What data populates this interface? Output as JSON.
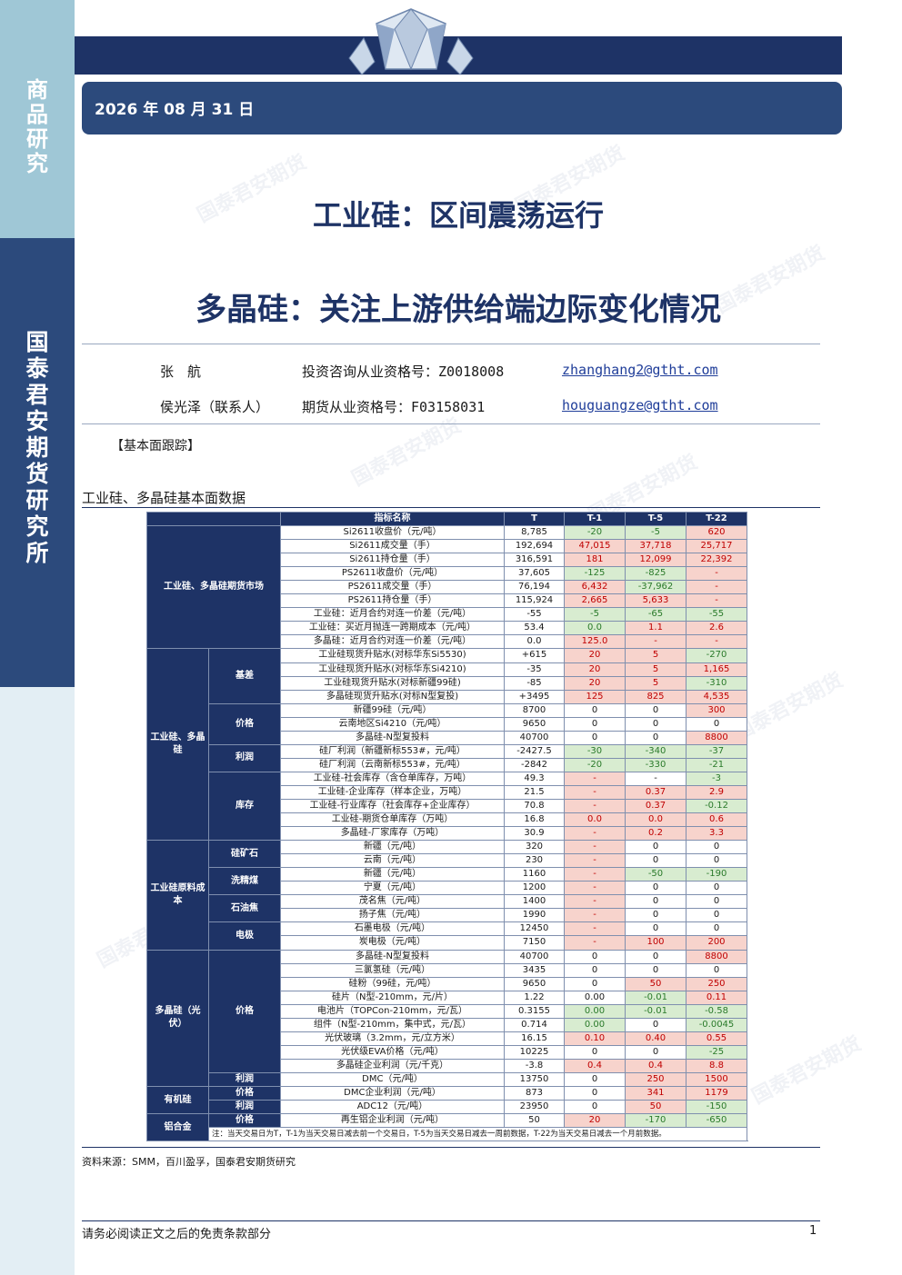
{
  "sidebar": {
    "top_label": [
      "商",
      "品",
      "研",
      "究"
    ],
    "mid_label": [
      "国",
      "泰",
      "君",
      "安",
      "期",
      "货",
      "研",
      "究",
      "所"
    ]
  },
  "header": {
    "date": "2026 年 08 月 31 日"
  },
  "titles": {
    "main": "工业硅：区间震荡运行",
    "sub": "多晶硅：关注上游供给端边际变化情况"
  },
  "authors": [
    {
      "name": "张　航",
      "cert": "投资咨询从业资格号：Z0018008",
      "email": "zhanghang2@gtht.com"
    },
    {
      "name": "侯光泽（联系人）",
      "cert": "期货从业资格号：F03158031",
      "email": "houguangze@gtht.com"
    }
  ],
  "section_tag": "【基本面跟踪】",
  "table_caption": "工业硅、多晶硅基本面数据",
  "watermark_text": "国泰君安期货",
  "table": {
    "headers": [
      "指标名称",
      "T",
      "T-1",
      "T-5",
      "T-22"
    ],
    "groups": {
      "futures": "工业硅、多晶硅期货市场",
      "silicon_poly": "工业硅、多晶硅",
      "basis": "基差",
      "price": "价格",
      "profit": "利润",
      "inventory": "库存",
      "cost": "工业硅原料成本",
      "ore": "硅矿石",
      "coal": "洗精煤",
      "coke": "石油焦",
      "electrode": "电极",
      "pv": "多晶硅（光伏）",
      "pv_price": "价格",
      "pv_profit": "利润",
      "organic": "有机硅",
      "org_price": "价格",
      "org_profit": "利润",
      "alloy": "铝合金",
      "al_price": "价格",
      "al_profit": "利润"
    },
    "rows": [
      {
        "name": "Si2611收盘价（元/吨）",
        "t": "8,785",
        "t1": "-20",
        "t5": "-5",
        "t22": "620"
      },
      {
        "name": "Si2611成交量（手）",
        "t": "192,694",
        "t1": "47,015",
        "t5": "37,718",
        "t22": "25,717"
      },
      {
        "name": "Si2611持仓量（手）",
        "t": "316,591",
        "t1": "181",
        "t5": "12,099",
        "t22": "22,392"
      },
      {
        "name": "PS2611收盘价（元/吨）",
        "t": "37,605",
        "t1": "-125",
        "t5": "-825",
        "t22": "-"
      },
      {
        "name": "PS2611成交量（手）",
        "t": "76,194",
        "t1": "6,432",
        "t5": "-37,962",
        "t22": "-"
      },
      {
        "name": "PS2611持仓量（手）",
        "t": "115,924",
        "t1": "2,665",
        "t5": "5,633",
        "t22": "-"
      },
      {
        "name": "工业硅：近月合约对连一价差（元/吨）",
        "t": "-55",
        "t1": "-5",
        "t5": "-65",
        "t22": "-55"
      },
      {
        "name": "工业硅：买近月抛连一跨期成本（元/吨）",
        "t": "53.4",
        "t1": "0.0",
        "t5": "1.1",
        "t22": "2.6"
      },
      {
        "name": "多晶硅：近月合约对连一价差（元/吨）",
        "t": "0.0",
        "t1": "125.0",
        "t5": "-",
        "t22": "-"
      },
      {
        "name": "工业硅现货升贴水(对标华东Si5530)",
        "t": "+615",
        "t1": "20",
        "t5": "5",
        "t22": "-270"
      },
      {
        "name": "工业硅现货升贴水(对标华东Si4210)",
        "t": "-35",
        "t1": "20",
        "t5": "5",
        "t22": "1,165"
      },
      {
        "name": "工业硅现货升贴水(对标新疆99硅)",
        "t": "-85",
        "t1": "20",
        "t5": "5",
        "t22": "-310"
      },
      {
        "name": "多晶硅现货升贴水(对标N型复投)",
        "t": "+3495",
        "t1": "125",
        "t5": "825",
        "t22": "4,535"
      },
      {
        "name": "新疆99硅（元/吨）",
        "t": "8700",
        "t1": "0",
        "t5": "0",
        "t22": "300"
      },
      {
        "name": "云南地区Si4210（元/吨）",
        "t": "9650",
        "t1": "0",
        "t5": "0",
        "t22": "0"
      },
      {
        "name": "多晶硅-N型复投料",
        "t": "40700",
        "t1": "0",
        "t5": "0",
        "t22": "8800"
      },
      {
        "name": "硅厂利润（新疆新标553#，元/吨）",
        "t": "-2427.5",
        "t1": "-30",
        "t5": "-340",
        "t22": "-37"
      },
      {
        "name": "硅厂利润（云南新标553#，元/吨）",
        "t": "-2842",
        "t1": "-20",
        "t5": "-330",
        "t22": "-21"
      },
      {
        "name": "工业硅-社会库存（含仓单库存，万吨）",
        "t": "49.3",
        "t1": "-",
        "t5": "-",
        "t22": "-3"
      },
      {
        "name": "工业硅-企业库存（样本企业，万吨）",
        "t": "21.5",
        "t1": "-",
        "t5": "0.37",
        "t22": "2.9"
      },
      {
        "name": "工业硅-行业库存（社会库存+企业库存）",
        "t": "70.8",
        "t1": "-",
        "t5": "0.37",
        "t22": "-0.12"
      },
      {
        "name": "工业硅-期货仓单库存（万吨）",
        "t": "16.8",
        "t1": "0.0",
        "t5": "0.0",
        "t22": "0.6"
      },
      {
        "name": "多晶硅-厂家库存（万吨）",
        "t": "30.9",
        "t1": "-",
        "t5": "0.2",
        "t22": "3.3"
      },
      {
        "name": "新疆（元/吨）",
        "t": "320",
        "t1": "-",
        "t5": "0",
        "t22": "0"
      },
      {
        "name": "云南（元/吨）",
        "t": "230",
        "t1": "-",
        "t5": "0",
        "t22": "0"
      },
      {
        "name": "新疆（元/吨）",
        "t": "1160",
        "t1": "-",
        "t5": "-50",
        "t22": "-190"
      },
      {
        "name": "宁夏（元/吨）",
        "t": "1200",
        "t1": "-",
        "t5": "0",
        "t22": "0"
      },
      {
        "name": "茂名焦（元/吨）",
        "t": "1400",
        "t1": "-",
        "t5": "0",
        "t22": "0"
      },
      {
        "name": "扬子焦（元/吨）",
        "t": "1990",
        "t1": "-",
        "t5": "0",
        "t22": "0"
      },
      {
        "name": "石墨电极（元/吨）",
        "t": "12450",
        "t1": "-",
        "t5": "0",
        "t22": "0"
      },
      {
        "name": "炭电极（元/吨）",
        "t": "7150",
        "t1": "-",
        "t5": "100",
        "t22": "200"
      },
      {
        "name": "多晶硅-N型复投料",
        "t": "40700",
        "t1": "0",
        "t5": "0",
        "t22": "8800"
      },
      {
        "name": "三氯氢硅（元/吨）",
        "t": "3435",
        "t1": "0",
        "t5": "0",
        "t22": "0"
      },
      {
        "name": "硅粉（99硅，元/吨）",
        "t": "9650",
        "t1": "0",
        "t5": "50",
        "t22": "250"
      },
      {
        "name": "硅片（N型-210mm，元/片）",
        "t": "1.22",
        "t1": "0.00",
        "t5": "-0.01",
        "t22": "0.11"
      },
      {
        "name": "电池片（TOPCon-210mm，元/瓦）",
        "t": "0.3155",
        "t1": "0.00",
        "t5": "-0.01",
        "t22": "-0.58"
      },
      {
        "name": "组件（N型-210mm，集中式，元/瓦）",
        "t": "0.714",
        "t1": "0.00",
        "t5": "0",
        "t22": "-0.0045"
      },
      {
        "name": "光伏玻璃（3.2mm，元/立方米）",
        "t": "16.15",
        "t1": "0.10",
        "t5": "0.40",
        "t22": "0.55"
      },
      {
        "name": "光伏级EVA价格（元/吨）",
        "t": "10225",
        "t1": "0",
        "t5": "0",
        "t22": "-25"
      },
      {
        "name": "多晶硅企业利润（元/千克）",
        "t": "-3.8",
        "t1": "0.4",
        "t5": "0.4",
        "t22": "8.8"
      },
      {
        "name": "DMC（元/吨）",
        "t": "13750",
        "t1": "0",
        "t5": "250",
        "t22": "1500"
      },
      {
        "name": "DMC企业利润（元/吨）",
        "t": "873",
        "t1": "0",
        "t5": "341",
        "t22": "1179"
      },
      {
        "name": "ADC12（元/吨）",
        "t": "23950",
        "t1": "0",
        "t5": "50",
        "t22": "-150"
      },
      {
        "name": "再生铝企业利润（元/吨）",
        "t": "50",
        "t1": "20",
        "t5": "-170",
        "t22": "-650"
      }
    ],
    "note": "注：当天交易日为T，T-1为当天交易日减去前一个交易日，T-5为当天交易日减去一周前数据，T-22为当天交易日减去一个月前数据。"
  },
  "source": "资料来源：SMM，百川盈孚，国泰君安期货研究",
  "footer": {
    "disclaimer": "请务必阅读正文之后的免责条款部分",
    "page": "1"
  },
  "colors": {
    "navy": "#1e3366",
    "band": "#2c4a7c",
    "up_bg": "#f7d3cc",
    "up_fg": "#c00000",
    "down_bg": "#d8ecd0",
    "down_fg": "#2a7a2a"
  }
}
